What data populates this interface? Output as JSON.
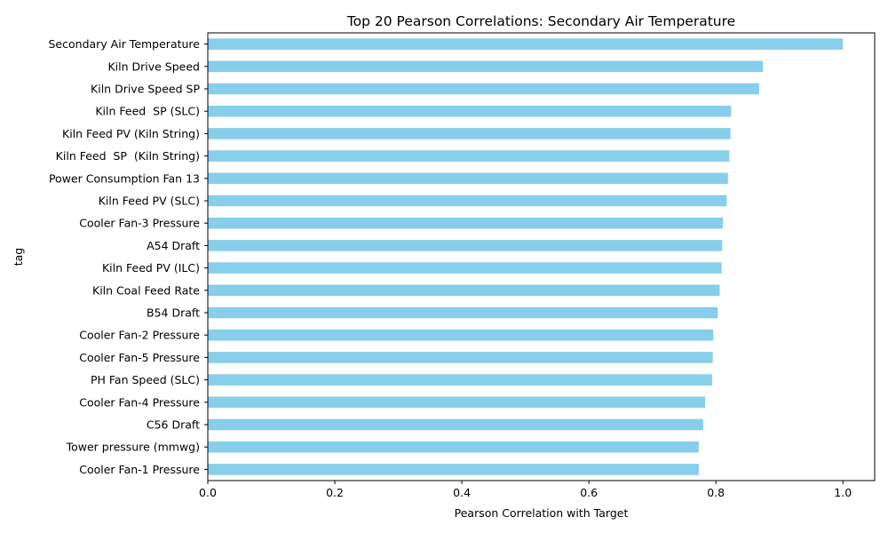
{
  "chart_data": {
    "type": "bar",
    "orientation": "horizontal",
    "title": "Top 20 Pearson Correlations: Secondary Air Temperature",
    "xlabel": "Pearson Correlation with Target",
    "ylabel": "tag",
    "xlim": [
      0,
      1.05
    ],
    "xticks": [
      "0.0",
      "0.2",
      "0.4",
      "0.6",
      "0.8",
      "1.0"
    ],
    "bar_color": "#87CEEB",
    "grid": false,
    "categories": [
      "Secondary Air Temperature",
      "Kiln Drive Speed",
      "Kiln Drive Speed SP",
      "Kiln Feed  SP (SLC)",
      "Kiln Feed PV (Kiln String)",
      "Kiln Feed  SP  (Kiln String)",
      "Power Consumption Fan 13",
      "Kiln Feed PV (SLC)",
      "Cooler Fan-3 Pressure",
      "A54 Draft",
      "Kiln Feed PV (ILC)",
      "Kiln Coal Feed Rate",
      "B54 Draft",
      "Cooler Fan-2 Pressure",
      "Cooler Fan-5 Pressure",
      "PH Fan Speed (SLC)",
      "Cooler Fan-4 Pressure",
      "C56 Draft",
      "Tower pressure (mmwg)",
      "Cooler Fan-1 Pressure"
    ],
    "values": [
      1.0,
      0.874,
      0.868,
      0.824,
      0.823,
      0.821,
      0.819,
      0.817,
      0.811,
      0.81,
      0.809,
      0.806,
      0.803,
      0.796,
      0.795,
      0.794,
      0.783,
      0.78,
      0.773,
      0.773
    ]
  }
}
